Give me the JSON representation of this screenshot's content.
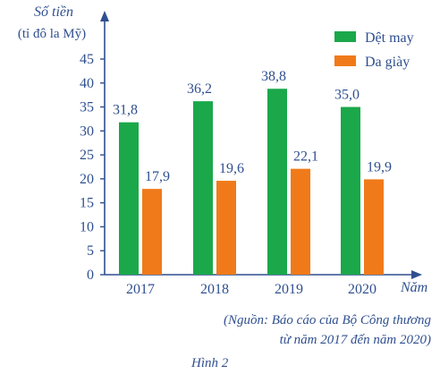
{
  "chart_data": {
    "type": "bar",
    "ylabel_line1": "Số tiền",
    "ylabel_line2": "(tỉ đô la Mỹ)",
    "xlabel": "Năm",
    "categories": [
      "2017",
      "2018",
      "2019",
      "2020"
    ],
    "series": [
      {
        "name": "Dệt may",
        "values": [
          31.8,
          36.2,
          38.8,
          35.0
        ],
        "labels": [
          "31,8",
          "36,2",
          "38,8",
          "35,0"
        ],
        "color": "#1aa84a"
      },
      {
        "name": "Da giày",
        "values": [
          17.9,
          19.6,
          22.1,
          19.9
        ],
        "labels": [
          "17,9",
          "19,6",
          "22,1",
          "19,9"
        ],
        "color": "#f07a1a"
      }
    ],
    "yticks": [
      0,
      5,
      10,
      15,
      20,
      25,
      30,
      35,
      40,
      45
    ],
    "ylim": [
      0,
      50
    ],
    "legend_position": "top-right"
  },
  "caption": {
    "source_line1": "(Nguồn: Báo cáo của Bộ Công thương",
    "source_line2": "từ năm 2017 đến năm 2020)",
    "figure_label": "Hình 2"
  },
  "colors": {
    "axis": "#2f4f8f",
    "text": "#2f4f8f"
  }
}
